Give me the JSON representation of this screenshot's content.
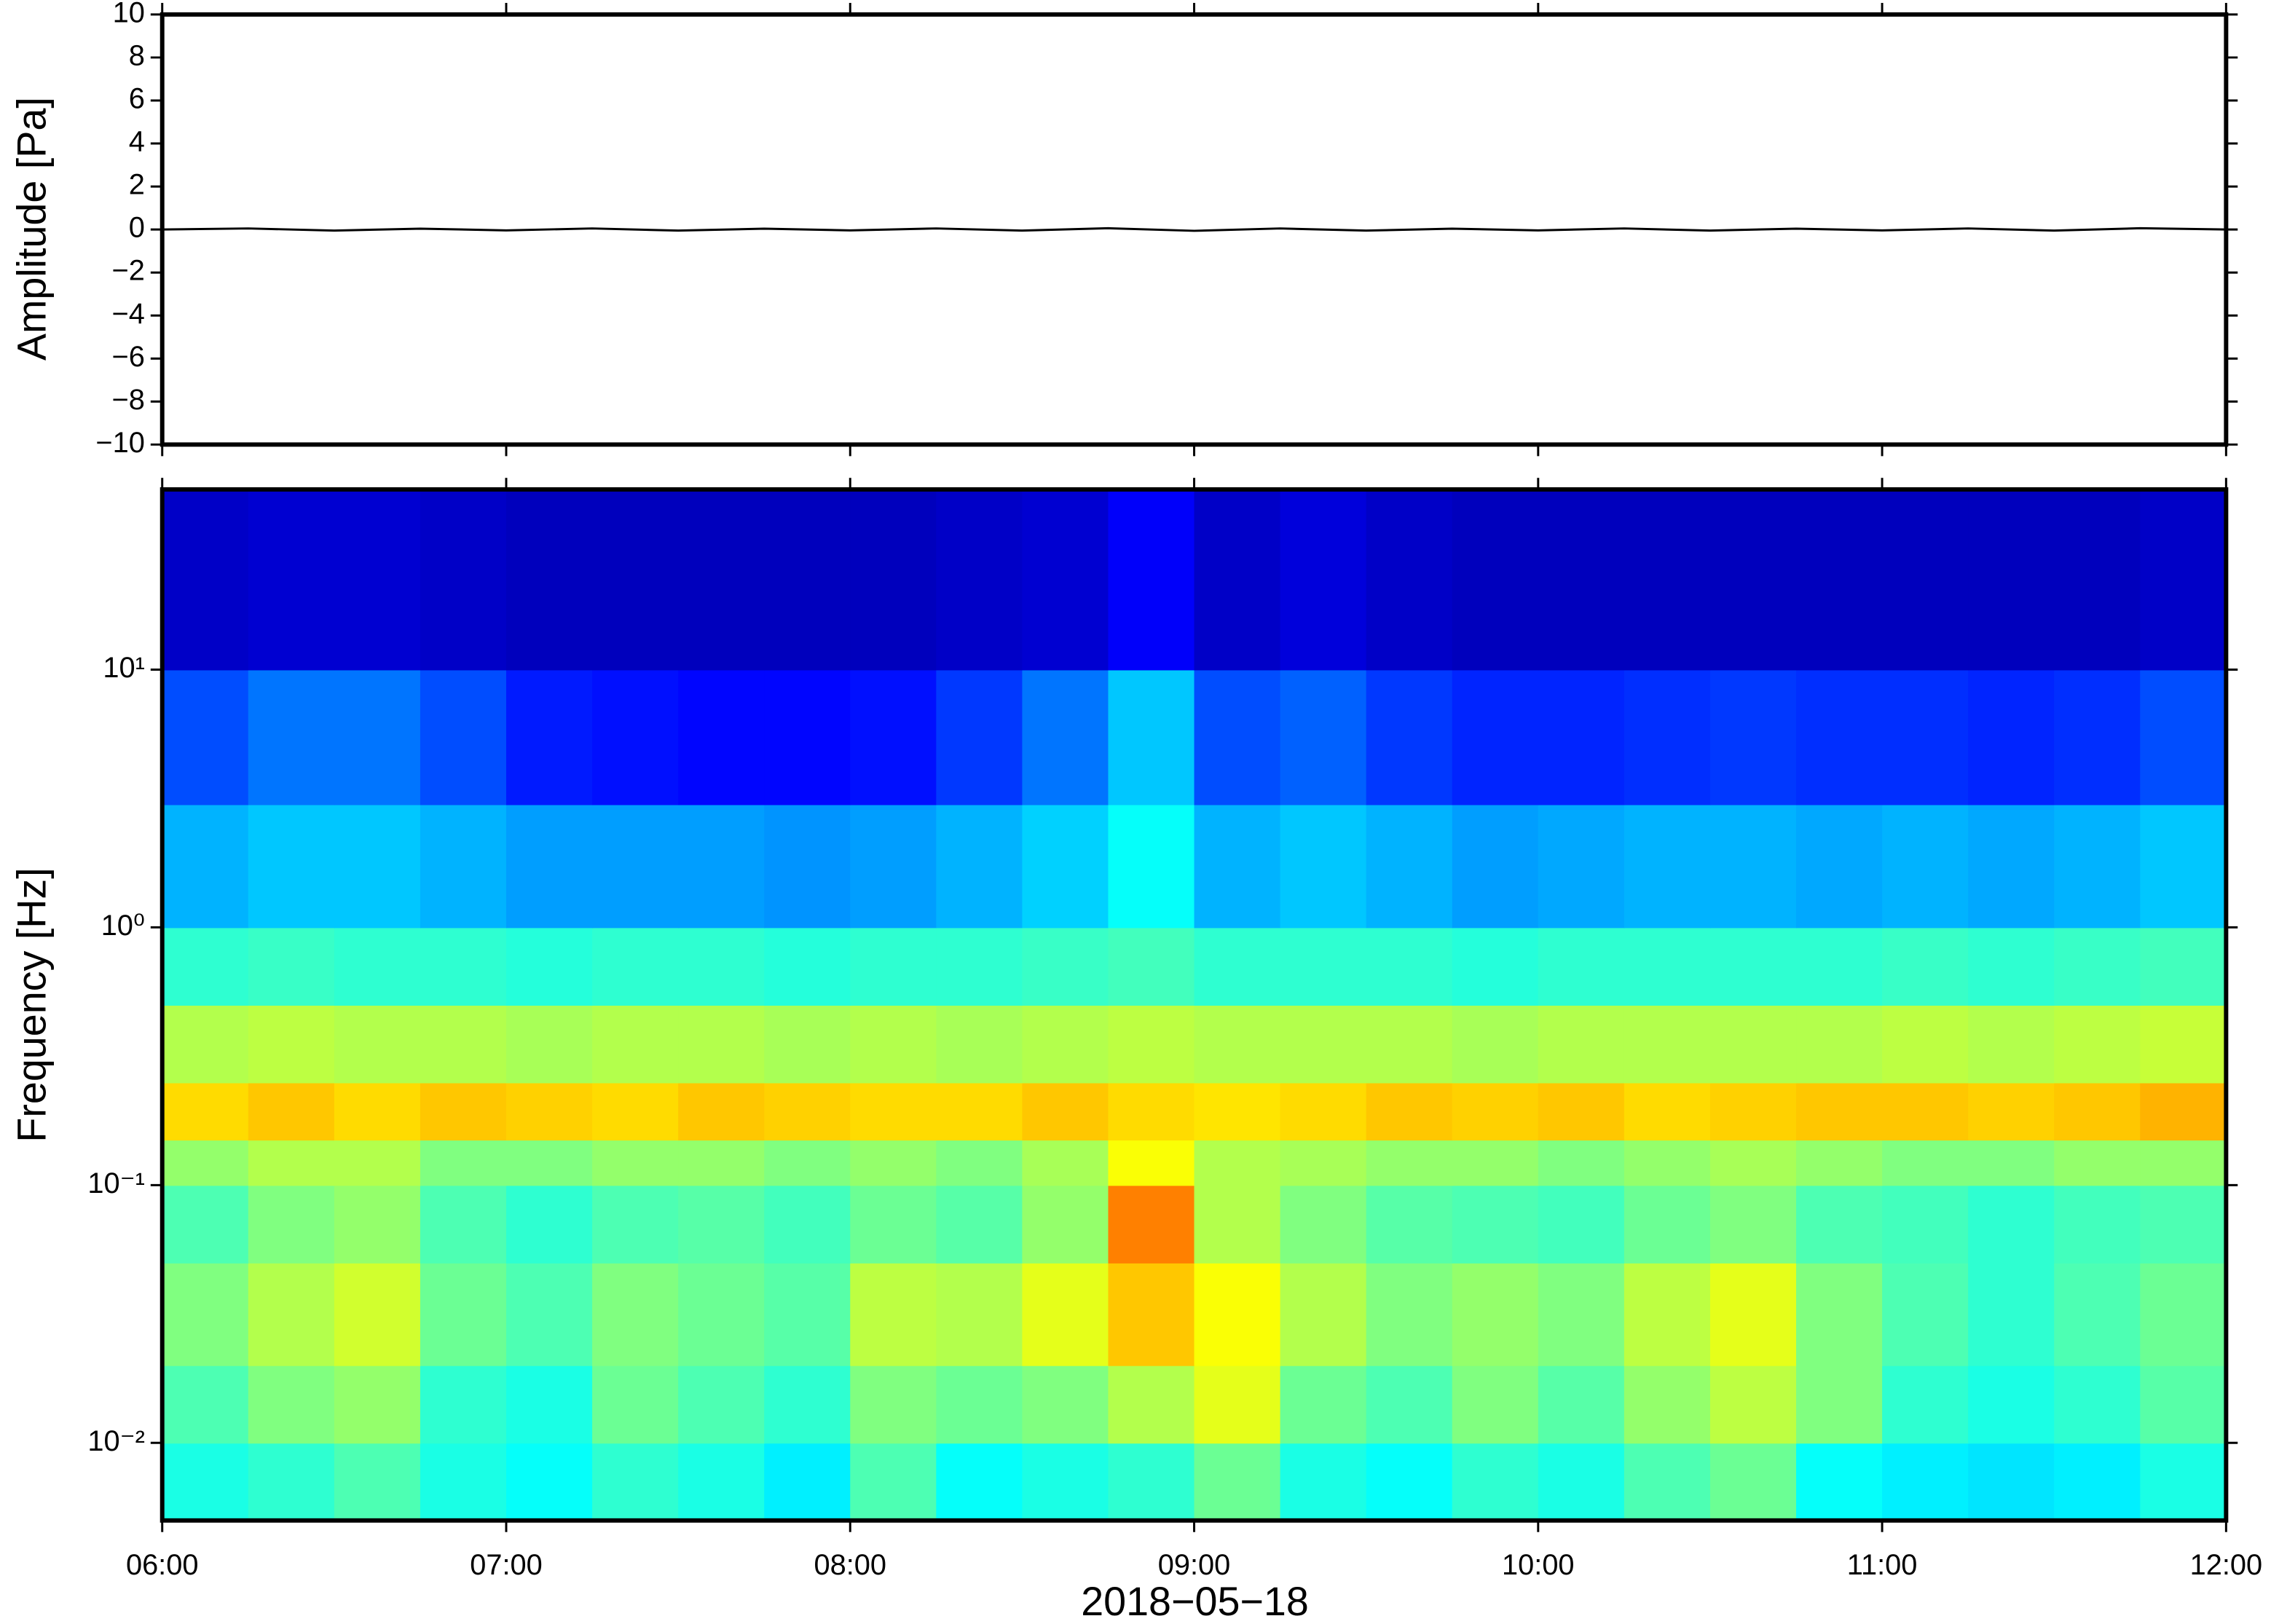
{
  "chart_data": [
    {
      "type": "line",
      "ylabel": "Amplitude [Pa]",
      "x": [
        6,
        6.25,
        6.5,
        6.75,
        7,
        7.25,
        7.5,
        7.75,
        8,
        8.25,
        8.5,
        8.75,
        9,
        9.25,
        9.5,
        9.75,
        10,
        10.25,
        10.5,
        10.75,
        11,
        11.25,
        11.5,
        11.75,
        12
      ],
      "series": [
        {
          "name": "Amplitude",
          "color": "#000000",
          "values": [
            0,
            0.05,
            -0.05,
            0.04,
            -0.04,
            0.05,
            -0.05,
            0.04,
            -0.04,
            0.05,
            -0.05,
            0.06,
            -0.06,
            0.05,
            -0.05,
            0.04,
            -0.04,
            0.05,
            -0.05,
            0.04,
            -0.04,
            0.05,
            -0.05,
            0.06,
            0
          ]
        }
      ],
      "xlim": [
        6,
        12
      ],
      "xticks": [
        6,
        7,
        8,
        9,
        10,
        11,
        12
      ],
      "ylim": [
        -10,
        10
      ],
      "yticks": [
        {
          "value": -10,
          "label": "−10"
        },
        {
          "value": -8,
          "label": "−8"
        },
        {
          "value": -6,
          "label": "−6"
        },
        {
          "value": -4,
          "label": "−4"
        },
        {
          "value": -2,
          "label": "−2"
        },
        0,
        2,
        4,
        6,
        8,
        10
      ]
    },
    {
      "type": "heatmap",
      "ylabel": "Frequency [Hz]",
      "xlabel": "2018−05−18",
      "colormap": "jet",
      "log_y": true,
      "xlim": [
        6,
        12
      ],
      "xticks": [
        {
          "value": 6,
          "label": "06:00"
        },
        {
          "value": 7,
          "label": "07:00"
        },
        {
          "value": 8,
          "label": "08:00"
        },
        {
          "value": 9,
          "label": "09:00"
        },
        {
          "value": 10,
          "label": "10:00"
        },
        {
          "value": 11,
          "label": "11:00"
        },
        {
          "value": 12,
          "label": "12:00"
        }
      ],
      "ylim": [
        0.005,
        50
      ],
      "yticks": [
        {
          "value": 0.01,
          "label": "10⁻²"
        },
        {
          "value": 0.1,
          "label": "10⁻¹"
        },
        {
          "value": 1,
          "label": "10⁰"
        },
        {
          "value": 10,
          "label": "10¹"
        }
      ],
      "x_edges": [
        6,
        6.25,
        6.5,
        6.75,
        7,
        7.25,
        7.5,
        7.75,
        8,
        8.25,
        8.5,
        8.75,
        9,
        9.25,
        9.5,
        9.75,
        10,
        10.25,
        10.5,
        10.75,
        11,
        11.25,
        11.5,
        11.75,
        12
      ],
      "y_edges": [
        0.005,
        0.01,
        0.02,
        0.05,
        0.1,
        0.15,
        0.25,
        0.5,
        1,
        3,
        10,
        50
      ],
      "z": [
        [
          0.4,
          0.42,
          0.45,
          0.4,
          0.38,
          0.42,
          0.4,
          0.36,
          0.45,
          0.38,
          0.4,
          0.42,
          0.48,
          0.4,
          0.38,
          0.42,
          0.4,
          0.45,
          0.48,
          0.38,
          0.36,
          0.35,
          0.36,
          0.4
        ],
        [
          0.45,
          0.5,
          0.52,
          0.42,
          0.4,
          0.48,
          0.45,
          0.42,
          0.5,
          0.48,
          0.5,
          0.55,
          0.6,
          0.48,
          0.45,
          0.5,
          0.46,
          0.52,
          0.56,
          0.5,
          0.42,
          0.4,
          0.42,
          0.46
        ],
        [
          0.5,
          0.55,
          0.58,
          0.48,
          0.45,
          0.5,
          0.48,
          0.46,
          0.56,
          0.55,
          0.6,
          0.68,
          0.62,
          0.55,
          0.5,
          0.52,
          0.5,
          0.56,
          0.6,
          0.5,
          0.45,
          0.42,
          0.45,
          0.48
        ],
        [
          0.45,
          0.5,
          0.52,
          0.45,
          0.42,
          0.45,
          0.46,
          0.44,
          0.48,
          0.46,
          0.52,
          0.75,
          0.55,
          0.5,
          0.46,
          0.45,
          0.44,
          0.48,
          0.5,
          0.45,
          0.44,
          0.42,
          0.44,
          0.45
        ],
        [
          0.52,
          0.55,
          0.55,
          0.5,
          0.5,
          0.52,
          0.52,
          0.5,
          0.52,
          0.5,
          0.54,
          0.62,
          0.55,
          0.54,
          0.52,
          0.52,
          0.5,
          0.52,
          0.54,
          0.52,
          0.5,
          0.5,
          0.52,
          0.52
        ],
        [
          0.66,
          0.68,
          0.66,
          0.68,
          0.67,
          0.66,
          0.68,
          0.67,
          0.66,
          0.66,
          0.68,
          0.66,
          0.65,
          0.66,
          0.68,
          0.67,
          0.68,
          0.66,
          0.67,
          0.68,
          0.68,
          0.67,
          0.68,
          0.7
        ],
        [
          0.55,
          0.56,
          0.55,
          0.55,
          0.54,
          0.55,
          0.55,
          0.54,
          0.55,
          0.54,
          0.55,
          0.56,
          0.55,
          0.55,
          0.55,
          0.54,
          0.55,
          0.55,
          0.55,
          0.55,
          0.56,
          0.55,
          0.56,
          0.57
        ],
        [
          0.42,
          0.43,
          0.42,
          0.42,
          0.41,
          0.42,
          0.42,
          0.41,
          0.42,
          0.42,
          0.43,
          0.44,
          0.42,
          0.42,
          0.42,
          0.41,
          0.42,
          0.42,
          0.42,
          0.42,
          0.43,
          0.42,
          0.43,
          0.44
        ],
        [
          0.3,
          0.32,
          0.32,
          0.3,
          0.28,
          0.28,
          0.28,
          0.27,
          0.28,
          0.3,
          0.33,
          0.38,
          0.3,
          0.32,
          0.3,
          0.28,
          0.29,
          0.3,
          0.3,
          0.29,
          0.3,
          0.29,
          0.3,
          0.32
        ],
        [
          0.2,
          0.24,
          0.24,
          0.2,
          0.15,
          0.14,
          0.13,
          0.13,
          0.14,
          0.18,
          0.24,
          0.32,
          0.2,
          0.22,
          0.18,
          0.16,
          0.16,
          0.17,
          0.18,
          0.17,
          0.17,
          0.16,
          0.17,
          0.2
        ],
        [
          0.07,
          0.08,
          0.08,
          0.07,
          0.06,
          0.06,
          0.06,
          0.06,
          0.06,
          0.07,
          0.08,
          0.12,
          0.07,
          0.09,
          0.07,
          0.06,
          0.06,
          0.06,
          0.06,
          0.06,
          0.06,
          0.06,
          0.06,
          0.07
        ]
      ]
    }
  ]
}
